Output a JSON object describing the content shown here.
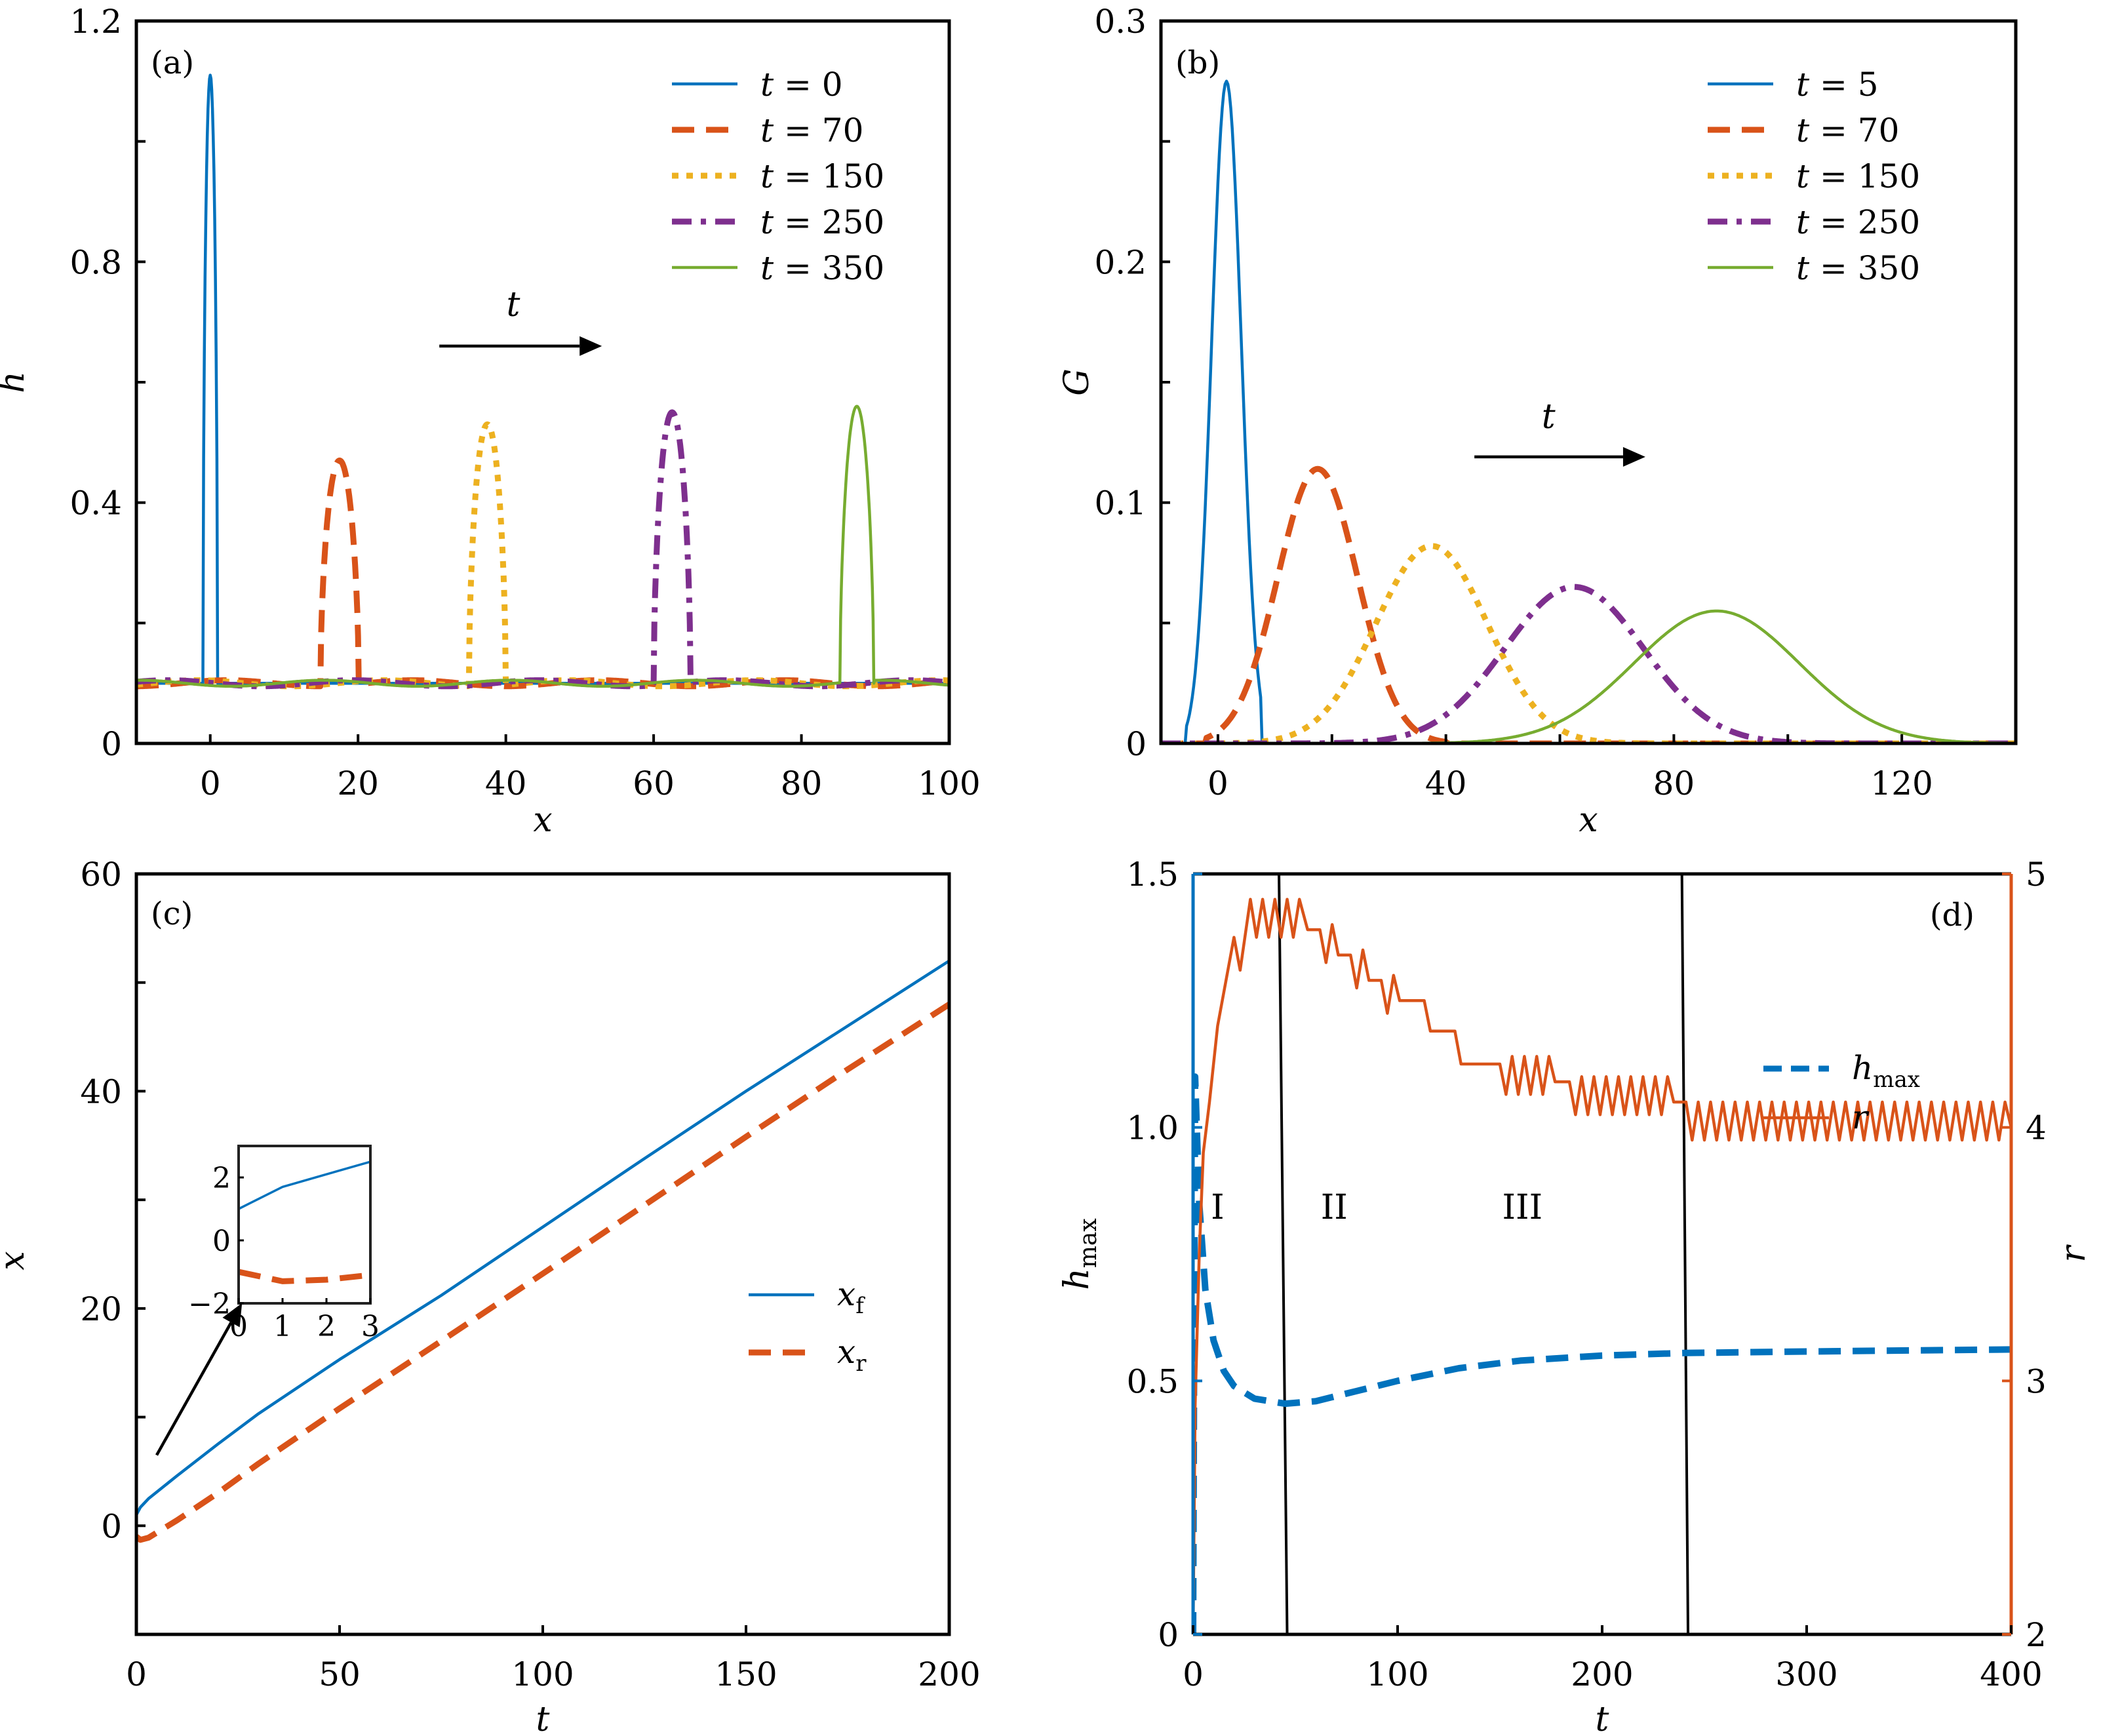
{
  "figure": {
    "colors": {
      "blue": "#0072BD",
      "orange": "#D95319",
      "yellow": "#EDB120",
      "purple": "#7E2F8E",
      "green": "#77AC30",
      "black": "#000000"
    }
  },
  "chart_data": [
    {
      "panel": "(a)",
      "type": "line",
      "xlabel": "x",
      "ylabel": "h",
      "xlim": [
        -10,
        100
      ],
      "ylim": [
        0,
        1.2
      ],
      "xticks": [
        0,
        20,
        40,
        60,
        80,
        100
      ],
      "xtick_labels": [
        "0",
        "20",
        "40",
        "60",
        "80",
        "100"
      ],
      "yticks": [
        0,
        0.4,
        0.8,
        1.2
      ],
      "ytick_labels": [
        "0",
        "0.4",
        "0.8",
        "1.2"
      ],
      "yminor_ticks": [
        0.2,
        0.6,
        1.0
      ],
      "legend_position": "top-right",
      "annotation": {
        "text": "t",
        "arrow_from": [
          31,
          0.66
        ],
        "arrow_to": [
          53,
          0.66
        ],
        "label_at": [
          41,
          0.71
        ]
      },
      "baseline": 0.1,
      "series": [
        {
          "name": "t = 0",
          "t": "0",
          "color": "blue",
          "style": "solid",
          "peak_x": 0,
          "peak_h": 1.11,
          "half_width": 1.0
        },
        {
          "name": "t = 70",
          "t": "70",
          "color": "orange",
          "style": "dashed",
          "peak_x": 17.5,
          "peak_h": 0.47,
          "half_width": 2.6
        },
        {
          "name": "t = 150",
          "t": "150",
          "color": "yellow",
          "style": "dotted",
          "peak_x": 37.5,
          "peak_h": 0.53,
          "half_width": 2.5
        },
        {
          "name": "t = 250",
          "t": "250",
          "color": "purple",
          "style": "dashdot",
          "peak_x": 62.5,
          "peak_h": 0.55,
          "half_width": 2.5
        },
        {
          "name": "t = 350",
          "t": "350",
          "color": "green",
          "style": "solid",
          "peak_x": 87.5,
          "peak_h": 0.56,
          "half_width": 2.3
        }
      ]
    },
    {
      "panel": "(b)",
      "type": "line",
      "xlabel": "x",
      "ylabel": "G",
      "xlim": [
        -10,
        140
      ],
      "ylim": [
        0,
        0.3
      ],
      "xticks": [
        0,
        40,
        80,
        120
      ],
      "xtick_labels": [
        "0",
        "40",
        "80",
        "120"
      ],
      "xminor_ticks": [
        20,
        60,
        100
      ],
      "yticks": [
        0,
        0.1,
        0.2,
        0.3
      ],
      "ytick_labels": [
        "0",
        "0.1",
        "0.2",
        "0.3"
      ],
      "yminor_ticks": [
        0.05,
        0.15,
        0.25
      ],
      "legend_position": "top-right",
      "annotation": {
        "text": "t",
        "arrow_from": [
          45,
          0.119
        ],
        "arrow_to": [
          75,
          0.119
        ],
        "label_at": [
          58,
          0.131
        ]
      },
      "series": [
        {
          "name": "t = 5",
          "t": "5",
          "color": "blue",
          "style": "solid",
          "center": 1.5,
          "peak": 0.275,
          "sigma": 2.6,
          "trunc": [
            -5.5,
            7.5
          ]
        },
        {
          "name": "t = 70",
          "t": "70",
          "color": "orange",
          "style": "dashed",
          "center": 17.5,
          "peak": 0.114,
          "sigma": 7.0,
          "trunc": [
            -2,
            40
          ]
        },
        {
          "name": "t = 150",
          "t": "150",
          "color": "yellow",
          "style": "dotted",
          "center": 37.5,
          "peak": 0.082,
          "sigma": 9.8
        },
        {
          "name": "t = 250",
          "t": "250",
          "color": "purple",
          "style": "dashdot",
          "center": 62.5,
          "peak": 0.065,
          "sigma": 12.2
        },
        {
          "name": "t = 350",
          "t": "350",
          "color": "green",
          "style": "solid",
          "center": 87.5,
          "peak": 0.055,
          "sigma": 14.5
        }
      ]
    },
    {
      "panel": "(c)",
      "type": "line",
      "xlabel": "t",
      "ylabel": "x",
      "xlim": [
        0,
        200
      ],
      "ylim": [
        -10,
        60
      ],
      "xticks": [
        0,
        50,
        100,
        150,
        200
      ],
      "xtick_labels": [
        "0",
        "50",
        "100",
        "150",
        "200"
      ],
      "yticks": [
        0,
        20,
        40,
        60
      ],
      "ytick_labels": [
        "0",
        "20",
        "40",
        "60"
      ],
      "yminor_ticks": [
        10,
        30,
        50
      ],
      "legend_position": "center-right",
      "series": [
        {
          "name": "x_f",
          "label_main": "x",
          "label_sub": "f",
          "color": "blue",
          "style": "solid",
          "points": [
            [
              0,
              1.0
            ],
            [
              1,
              1.7
            ],
            [
              3,
              2.5
            ],
            [
              10,
              4.6
            ],
            [
              20,
              7.5
            ],
            [
              30,
              10.3
            ],
            [
              50,
              15.3
            ],
            [
              75,
              21.2
            ],
            [
              100,
              27.5
            ],
            [
              125,
              33.8
            ],
            [
              150,
              40.0
            ],
            [
              175,
              46.0
            ],
            [
              200,
              52.0
            ]
          ]
        },
        {
          "name": "x_r",
          "label_main": "x",
          "label_sub": "r",
          "color": "orange",
          "style": "dashed",
          "points": [
            [
              0,
              -1.0
            ],
            [
              1,
              -1.3
            ],
            [
              3,
              -1.1
            ],
            [
              10,
              0.5
            ],
            [
              20,
              3.0
            ],
            [
              30,
              5.7
            ],
            [
              50,
              10.8
            ],
            [
              75,
              17.0
            ],
            [
              100,
              23.2
            ],
            [
              125,
              29.5
            ],
            [
              150,
              35.8
            ],
            [
              175,
              42.0
            ],
            [
              200,
              48.0
            ]
          ]
        }
      ],
      "inset": {
        "xlim": [
          0,
          3
        ],
        "ylim": [
          -2,
          3
        ],
        "xticks": [
          0,
          1,
          2,
          3
        ],
        "xtick_labels": [
          "0",
          "1",
          "2",
          "3"
        ],
        "yticks": [
          -2,
          0,
          2
        ],
        "ytick_labels": [
          "−2",
          "0",
          "2"
        ],
        "series": [
          {
            "name": "x_f",
            "color": "blue",
            "style": "solid",
            "points": [
              [
                0,
                1.0
              ],
              [
                1,
                1.7
              ],
              [
                2,
                2.1
              ],
              [
                3,
                2.5
              ]
            ]
          },
          {
            "name": "x_r",
            "color": "orange",
            "style": "dashed",
            "points": [
              [
                0,
                -1.0
              ],
              [
                1,
                -1.3
              ],
              [
                2,
                -1.25
              ],
              [
                3,
                -1.1
              ]
            ]
          }
        ],
        "arrow_from": [
          5,
          6.5
        ],
        "arrow_to": [
          26,
          20.5
        ]
      }
    },
    {
      "panel": "(d)",
      "type": "line",
      "xlabel": "t",
      "ylabel": "h_max",
      "ylabel_main": "h",
      "ylabel_sub": "max",
      "ylabel_right": "r",
      "xlim": [
        0,
        400
      ],
      "ylim": [
        0,
        1.5
      ],
      "ylim_right": [
        2,
        5
      ],
      "xticks": [
        0,
        100,
        200,
        300,
        400
      ],
      "xtick_labels": [
        "0",
        "100",
        "200",
        "300",
        "400"
      ],
      "yticks": [
        0,
        0.5,
        1.0,
        1.5
      ],
      "ytick_labels": [
        "0",
        "0.5",
        "1.0",
        "1.5"
      ],
      "yticks_right": [
        2,
        3,
        4,
        5
      ],
      "ytick_labels_right": [
        "2",
        "3",
        "4",
        "5"
      ],
      "legend_position": "upper-right",
      "regions": [
        {
          "label": "I",
          "label_t": 12,
          "label_y": 0.82
        },
        {
          "label": "II",
          "label_t": 69,
          "label_y": 0.82
        },
        {
          "label": "III",
          "label_t": 161,
          "label_y": 0.82
        }
      ],
      "region_boundaries": [
        {
          "t_top": 42,
          "t_bottom": 46
        },
        {
          "t_top": 239,
          "t_bottom": 242
        }
      ],
      "series": [
        {
          "name": "h_max",
          "label_main": "h",
          "label_sub": "max",
          "color": "blue",
          "style": "dashed",
          "axis": "left",
          "points": [
            [
              0,
              0
            ],
            [
              1,
              1.1
            ],
            [
              3,
              0.85
            ],
            [
              6,
              0.68
            ],
            [
              10,
              0.58
            ],
            [
              15,
              0.52
            ],
            [
              20,
              0.49
            ],
            [
              30,
              0.465
            ],
            [
              45,
              0.455
            ],
            [
              60,
              0.46
            ],
            [
              80,
              0.48
            ],
            [
              100,
              0.5
            ],
            [
              130,
              0.525
            ],
            [
              160,
              0.54
            ],
            [
              200,
              0.55
            ],
            [
              240,
              0.555
            ],
            [
              300,
              0.558
            ],
            [
              350,
              0.56
            ],
            [
              400,
              0.562
            ]
          ]
        },
        {
          "name": "r",
          "label_main": "r",
          "color": "orange",
          "style": "solid",
          "axis": "right",
          "points": [
            [
              0,
              2.0
            ],
            [
              1,
              2.9
            ],
            [
              3,
              3.5
            ],
            [
              5,
              3.9
            ],
            [
              8,
              4.1
            ],
            [
              12,
              4.4
            ],
            [
              20,
              4.75
            ],
            [
              23,
              4.62
            ],
            [
              28,
              4.9
            ],
            [
              31,
              4.75
            ],
            [
              34,
              4.9
            ],
            [
              37,
              4.75
            ],
            [
              40,
              4.9
            ],
            [
              43,
              4.75
            ],
            [
              46,
              4.9
            ],
            [
              49,
              4.75
            ],
            [
              52,
              4.9
            ],
            [
              56,
              4.78
            ],
            [
              62,
              4.78
            ],
            [
              65,
              4.65
            ],
            [
              68,
              4.8
            ],
            [
              71,
              4.68
            ],
            [
              77,
              4.68
            ],
            [
              80,
              4.55
            ],
            [
              83,
              4.7
            ],
            [
              86,
              4.58
            ],
            [
              92,
              4.58
            ],
            [
              95,
              4.45
            ],
            [
              98,
              4.6
            ],
            [
              101,
              4.5
            ],
            [
              113,
              4.5
            ],
            [
              116,
              4.38
            ],
            [
              128,
              4.38
            ],
            [
              131,
              4.25
            ],
            [
              150,
              4.25
            ],
            [
              153,
              4.13
            ],
            [
              156,
              4.28
            ],
            [
              159,
              4.13
            ],
            [
              162,
              4.28
            ],
            [
              165,
              4.13
            ],
            [
              168,
              4.28
            ],
            [
              171,
              4.13
            ],
            [
              174,
              4.28
            ],
            [
              177,
              4.18
            ],
            [
              184,
              4.18
            ],
            [
              187,
              4.05
            ],
            [
              190,
              4.2
            ],
            [
              193,
              4.05
            ],
            [
              196,
              4.2
            ],
            [
              199,
              4.05
            ],
            [
              202,
              4.2
            ],
            [
              205,
              4.05
            ],
            [
              208,
              4.2
            ],
            [
              211,
              4.05
            ],
            [
              214,
              4.2
            ],
            [
              217,
              4.05
            ],
            [
              220,
              4.2
            ],
            [
              223,
              4.05
            ],
            [
              226,
              4.2
            ],
            [
              229,
              4.05
            ],
            [
              232,
              4.2
            ],
            [
              235,
              4.1
            ],
            [
              241,
              4.1
            ],
            [
              244,
              3.95
            ],
            [
              247,
              4.1
            ],
            [
              250,
              3.95
            ],
            [
              253,
              4.1
            ],
            [
              256,
              3.95
            ],
            [
              259,
              4.1
            ],
            [
              262,
              3.95
            ],
            [
              265,
              4.1
            ],
            [
              268,
              3.95
            ],
            [
              271,
              4.1
            ],
            [
              274,
              3.95
            ],
            [
              277,
              4.1
            ],
            [
              280,
              3.95
            ],
            [
              283,
              4.1
            ],
            [
              286,
              3.95
            ],
            [
              289,
              4.1
            ],
            [
              292,
              3.95
            ],
            [
              295,
              4.1
            ],
            [
              298,
              3.95
            ],
            [
              301,
              4.1
            ],
            [
              304,
              3.95
            ],
            [
              307,
              4.1
            ],
            [
              310,
              3.95
            ],
            [
              313,
              4.1
            ],
            [
              316,
              3.95
            ],
            [
              319,
              4.1
            ],
            [
              322,
              3.95
            ],
            [
              325,
              4.1
            ],
            [
              328,
              3.95
            ],
            [
              331,
              4.1
            ],
            [
              334,
              3.95
            ],
            [
              337,
              4.1
            ],
            [
              340,
              3.95
            ],
            [
              343,
              4.1
            ],
            [
              346,
              3.95
            ],
            [
              349,
              4.1
            ],
            [
              352,
              3.95
            ],
            [
              355,
              4.1
            ],
            [
              358,
              3.95
            ],
            [
              361,
              4.1
            ],
            [
              364,
              3.95
            ],
            [
              367,
              4.1
            ],
            [
              370,
              3.95
            ],
            [
              373,
              4.1
            ],
            [
              376,
              3.95
            ],
            [
              379,
              4.1
            ],
            [
              382,
              3.95
            ],
            [
              385,
              4.1
            ],
            [
              388,
              3.95
            ],
            [
              391,
              4.1
            ],
            [
              394,
              3.95
            ],
            [
              397,
              4.1
            ],
            [
              400,
              4.0
            ]
          ]
        }
      ]
    }
  ]
}
